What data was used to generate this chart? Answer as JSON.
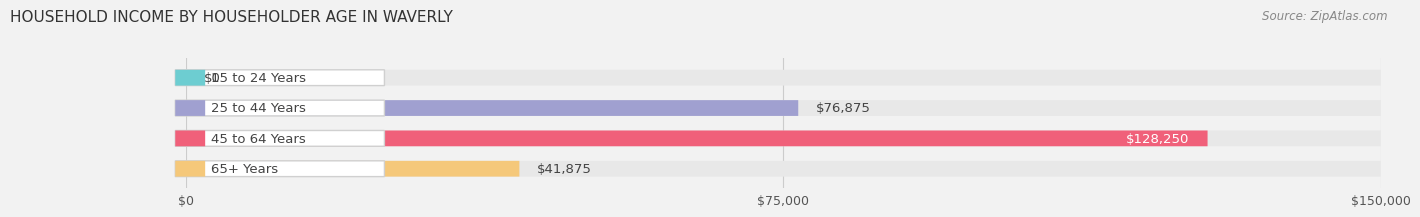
{
  "title": "HOUSEHOLD INCOME BY HOUSEHOLDER AGE IN WAVERLY",
  "source": "Source: ZipAtlas.com",
  "categories": [
    "15 to 24 Years",
    "25 to 44 Years",
    "45 to 64 Years",
    "65+ Years"
  ],
  "values": [
    0,
    76875,
    128250,
    41875
  ],
  "bar_colors": [
    "#6dcdd1",
    "#a0a0d0",
    "#f0607a",
    "#f5c87a"
  ],
  "label_colors": [
    "#555555",
    "#555555",
    "#ffffff",
    "#555555"
  ],
  "value_labels": [
    "$0",
    "$76,875",
    "$128,250",
    "$41,875"
  ],
  "xlim": [
    0,
    150000
  ],
  "xticks": [
    0,
    75000,
    150000
  ],
  "xticklabels": [
    "$0",
    "$75,000",
    "$150,000"
  ],
  "background_color": "#f2f2f2",
  "bar_bg_color": "#e8e8e8",
  "title_fontsize": 11,
  "bar_height": 0.52,
  "label_fontsize": 9.5,
  "value_fontsize": 9.5,
  "pill_color": "#ffffff",
  "pill_edge_color": "#d0d0d0"
}
